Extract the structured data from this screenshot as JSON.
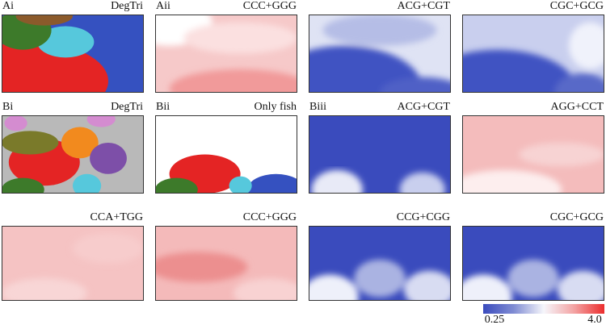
{
  "panels": [
    {
      "label": "Ai",
      "title": "DegTri"
    },
    {
      "label": "Aii",
      "title": "CCC+GGG"
    },
    {
      "label": "",
      "title": "ACG+CGT"
    },
    {
      "label": "",
      "title": "CGC+GCG"
    },
    {
      "label": "Bi",
      "title": "DegTri"
    },
    {
      "label": "Bii",
      "title": "Only fish"
    },
    {
      "label": "Biii",
      "title": "ACG+CGT"
    },
    {
      "label": "",
      "title": "AGG+CCT"
    },
    {
      "label": "",
      "title": "CCA+TGG"
    },
    {
      "label": "",
      "title": "CCC+GGG"
    },
    {
      "label": "",
      "title": "CCG+CGG"
    },
    {
      "label": "",
      "title": "CGC+GCG"
    }
  ],
  "colorbar": {
    "min_label": "0.25",
    "max_label": "4.0"
  }
}
